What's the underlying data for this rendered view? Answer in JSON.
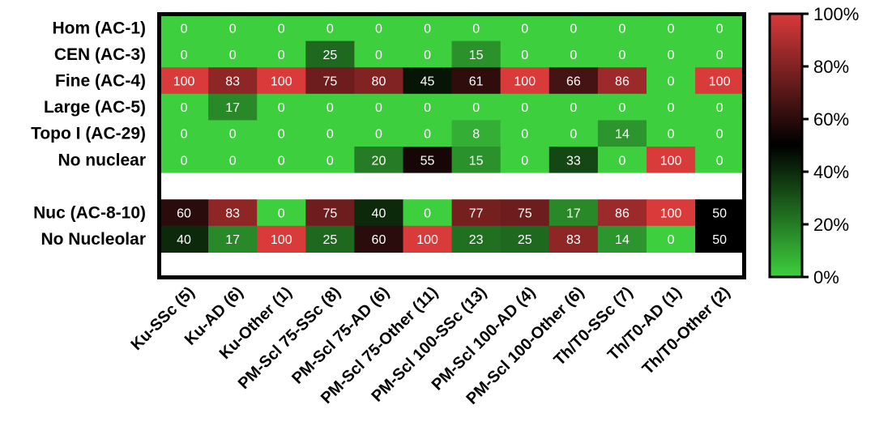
{
  "chart_data": {
    "type": "heatmap",
    "rows": [
      "Hom (AC-1)",
      "CEN (AC-3)",
      "Fine (AC-4)",
      "Large (AC-5)",
      "Topo I (AC-29)",
      "No nuclear",
      "",
      "Nuc (AC-8-10)",
      "No Nucleolar"
    ],
    "columns": [
      "Ku-SSc (5)",
      "Ku-AD (6)",
      "Ku-Other (1)",
      "PM-Scl 75-SSc (8)",
      "PM-Scl 75-AD (6)",
      "PM-Scl 75-Other (11)",
      "PM-Scl 100-SSc (13)",
      "PM-Scl 100-AD (4)",
      "PM-Scl 100-Other (6)",
      "Th/T0-SSc (7)",
      "Th/T0-AD (1)",
      "Th/T0-Other (2)"
    ],
    "values": [
      [
        0,
        0,
        0,
        0,
        0,
        0,
        0,
        0,
        0,
        0,
        0,
        0
      ],
      [
        0,
        0,
        0,
        25,
        0,
        0,
        15,
        0,
        0,
        0,
        0,
        0
      ],
      [
        100,
        83,
        100,
        75,
        80,
        45,
        61,
        100,
        66,
        86,
        0,
        100
      ],
      [
        0,
        17,
        0,
        0,
        0,
        0,
        0,
        0,
        0,
        0,
        0,
        0
      ],
      [
        0,
        0,
        0,
        0,
        0,
        0,
        8,
        0,
        0,
        14,
        0,
        0
      ],
      [
        0,
        0,
        0,
        0,
        20,
        55,
        15,
        0,
        33,
        0,
        100,
        0
      ],
      [
        null,
        null,
        null,
        null,
        null,
        null,
        null,
        null,
        null,
        null,
        null,
        null
      ],
      [
        60,
        83,
        0,
        75,
        40,
        0,
        77,
        75,
        17,
        86,
        100,
        50
      ],
      [
        40,
        17,
        100,
        25,
        60,
        100,
        23,
        25,
        83,
        14,
        0,
        50
      ]
    ],
    "colorscale": {
      "min": 0,
      "max": 100,
      "low": "#3ecf3e",
      "mid": "#000000",
      "high": "#d93a3a",
      "mid_value": 50
    },
    "legend": {
      "ticks": [
        "0%",
        "20%",
        "40%",
        "60%",
        "80%",
        "100%"
      ],
      "tick_values": [
        0,
        20,
        40,
        60,
        80,
        100
      ],
      "placement": "right"
    }
  }
}
